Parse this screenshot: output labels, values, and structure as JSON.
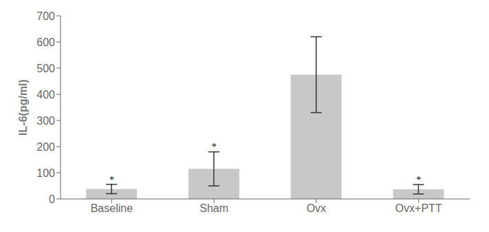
{
  "chart_data": {
    "type": "bar",
    "categories": [
      "Baseline",
      "Sham",
      "Ovx",
      "Ovx+PTT"
    ],
    "values": [
      38,
      115,
      475,
      37
    ],
    "errors": [
      18,
      65,
      145,
      18
    ],
    "color": "#c8c8c8",
    "ylabel": "IL-6(pg/ml)",
    "ylim": [
      0,
      700
    ],
    "yticks": [
      0,
      100,
      200,
      300,
      400,
      500,
      600,
      700
    ],
    "grid": false,
    "annotations": [
      {
        "text": "*",
        "x": "Baseline",
        "y": 60
      },
      {
        "text": "*",
        "x": "Sham",
        "y": 188
      },
      {
        "text": "*",
        "x": "Ovx+PTT",
        "y": 60
      }
    ]
  }
}
